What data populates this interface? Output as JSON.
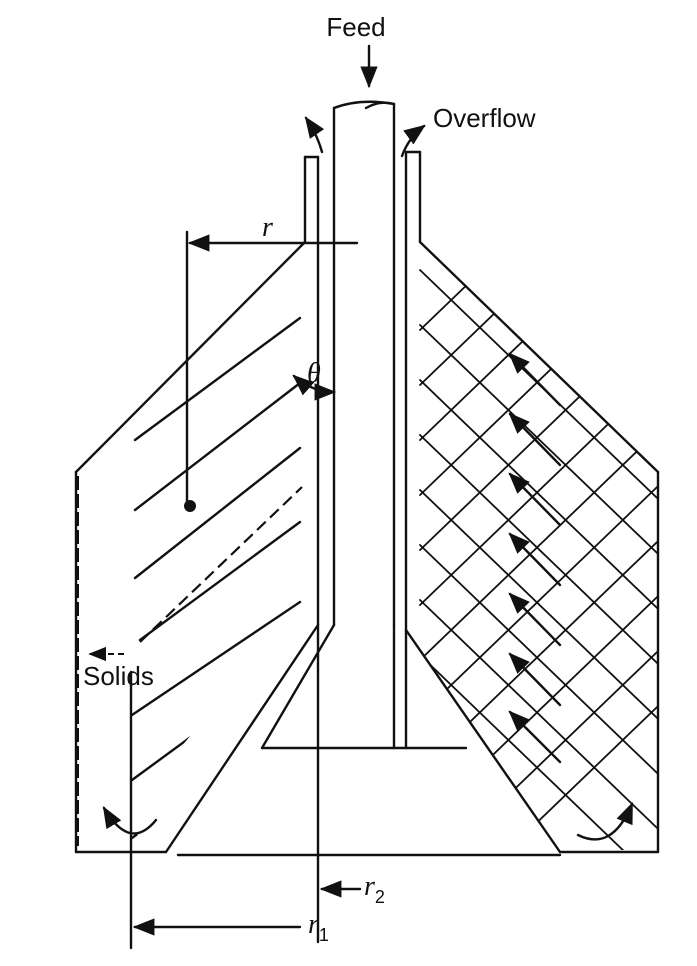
{
  "labels": {
    "feed": "Feed",
    "overflow": "Overflow",
    "solids": "Solids",
    "r": "r",
    "theta": "θ",
    "r2_main": "r",
    "r2_sub": "2",
    "r1_main": "r",
    "r1_sub": "1"
  }
}
